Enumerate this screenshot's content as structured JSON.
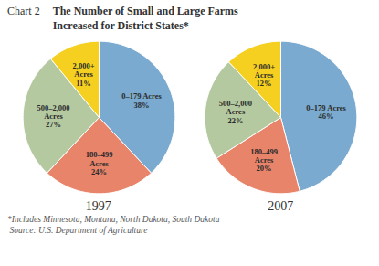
{
  "chart_data": {
    "type": "pie",
    "title": "The Number of Small and Large Farms\nIncreased for District States*",
    "annotations": [
      "Chart 2",
      "*Includes Minnesota, Montana, North Dakota, South Dakota",
      " Source: U.S. Department of Agriculture"
    ],
    "categories": [
      "0–179 Acres",
      "180–499 Acres",
      "500–2,000 Acres",
      "2,000+ Acres"
    ],
    "colors": [
      "#7aaad0",
      "#e8846a",
      "#b5c9a0",
      "#f5d020"
    ],
    "data_labels": true,
    "series": [
      {
        "name": "1997",
        "values": [
          38,
          24,
          27,
          11
        ],
        "value_labels": [
          "38%",
          "24%",
          "27%",
          "11%"
        ]
      },
      {
        "name": "2007",
        "values": [
          46,
          20,
          22,
          12
        ],
        "value_labels": [
          "46%",
          "20%",
          "22%",
          "12%"
        ]
      }
    ]
  }
}
